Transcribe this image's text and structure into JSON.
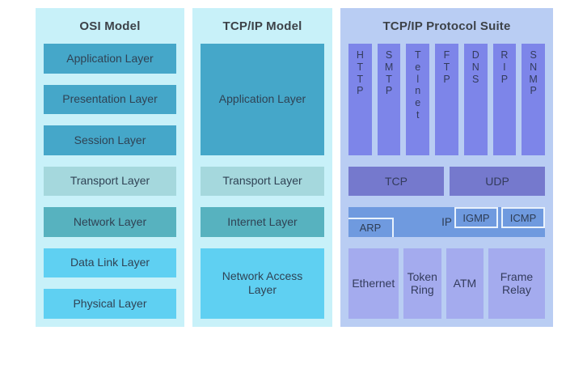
{
  "diagram": {
    "osi": {
      "title": "OSI Model",
      "panel_bg": "#c8f1f9",
      "layers": [
        {
          "label": "Application Layer",
          "color": "#45a7c9"
        },
        {
          "label": "Presentation Layer",
          "color": "#45a7c9"
        },
        {
          "label": "Session Layer",
          "color": "#45a7c9"
        },
        {
          "label": "Transport Layer",
          "color": "#a5d8dd"
        },
        {
          "label": "Network Layer",
          "color": "#57b2bf"
        },
        {
          "label": "Data Link Layer",
          "color": "#5fd0f2"
        },
        {
          "label": "Physical Layer",
          "color": "#5fd0f2"
        }
      ]
    },
    "tcpip_model": {
      "title": "TCP/IP Model",
      "panel_bg": "#c8f1f9",
      "layers": [
        {
          "label": "Application Layer",
          "color": "#45a7c9"
        },
        {
          "label": "Transport Layer",
          "color": "#a5d8dd"
        },
        {
          "label": "Internet Layer",
          "color": "#57b2bf"
        },
        {
          "label": "Network Access Layer",
          "color": "#5fd0f2"
        }
      ]
    },
    "protocol_suite": {
      "title": "TCP/IP Protocol Suite",
      "panel_bg": "#b9cdf3",
      "application_protocols": {
        "color": "#7d85e9",
        "items": [
          "HTTP",
          "SMTP",
          "Telnet",
          "FTP",
          "DNS",
          "RIP",
          "SNMP"
        ]
      },
      "transport_protocols": {
        "color": "#7579cd",
        "items": [
          "TCP",
          "UDP"
        ]
      },
      "internet_protocols": {
        "color": "#6f9adf",
        "main": "IP",
        "top_right": [
          "IGMP",
          "ICMP"
        ],
        "bottom_left": "ARP"
      },
      "link_technologies": {
        "color": "#a4abee",
        "items": [
          "Ethernet",
          "Token Ring",
          "ATM",
          "Frame Relay"
        ]
      }
    }
  }
}
